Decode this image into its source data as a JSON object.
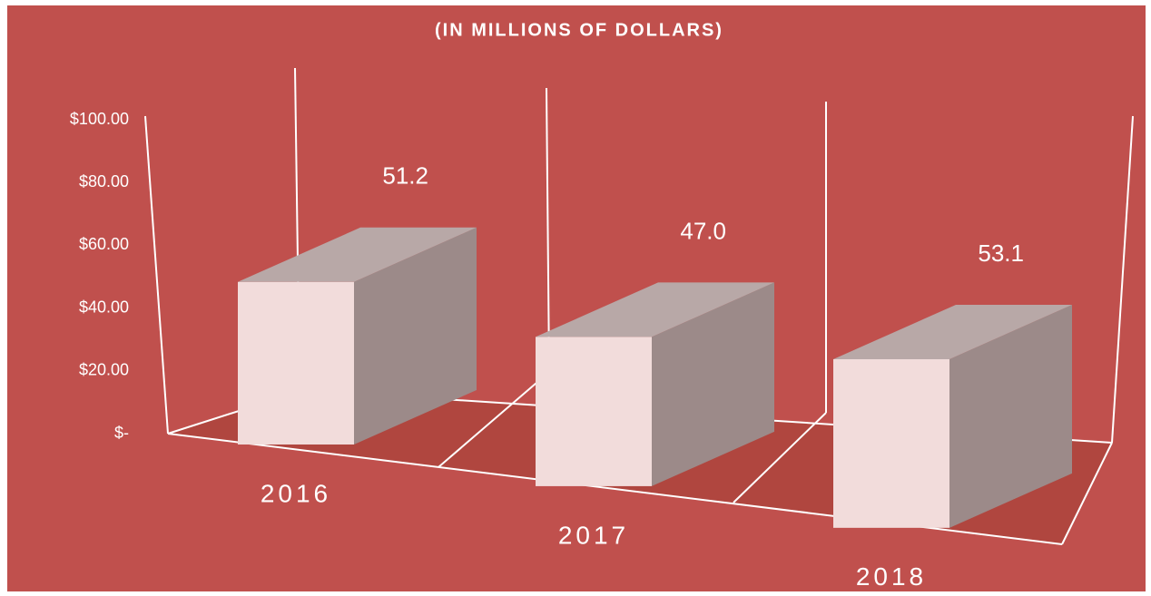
{
  "chart_data": {
    "type": "bar3d",
    "title": "(IN MILLIONS  OF DOLLARS)",
    "categories": [
      "2016",
      "2017",
      "2018"
    ],
    "values": [
      51.2,
      47.0,
      53.1
    ],
    "value_labels": [
      "51.2",
      "47.0",
      "53.1"
    ],
    "ylim": [
      0,
      100
    ],
    "yticks": [
      {
        "value": 0,
        "label": "$-"
      },
      {
        "value": 20,
        "label": "$20.00"
      },
      {
        "value": 40,
        "label": "$40.00"
      },
      {
        "value": 60,
        "label": "$60.00"
      },
      {
        "value": 80,
        "label": "$80.00"
      },
      {
        "value": 100,
        "label": "$100.00"
      }
    ],
    "color": "#f2dcdb",
    "side_color": "#9c8a89",
    "top_color": "#b8a8a7"
  }
}
